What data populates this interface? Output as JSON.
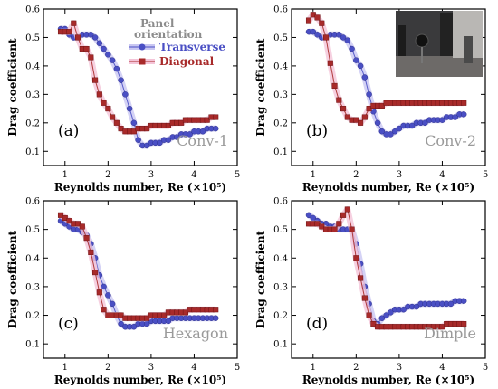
{
  "figure": {
    "legend_title": "Panel orientation",
    "legend_entries": [
      {
        "label": "Transverse",
        "color": "#4a4fc4",
        "marker": "circle"
      },
      {
        "label": "Diagonal",
        "color": "#a82a2a",
        "marker": "square"
      }
    ],
    "photo_inset_panel": "b"
  },
  "chart_data": [
    {
      "type": "line",
      "panel_label": "(a)",
      "name_label": "Conv-1",
      "xlabel": "Reynolds number, Re (×10⁵)",
      "ylabel": "Drag coefficient",
      "xlim": [
        0.5,
        5
      ],
      "ylim": [
        0.05,
        0.6
      ],
      "xticks": [
        "1",
        "2",
        "3",
        "4",
        "5"
      ],
      "yticks": [
        "0.1",
        "0.2",
        "0.3",
        "0.4",
        "0.5",
        "0.6"
      ],
      "series": [
        {
          "name": "Transverse",
          "color": "#4a4fc4",
          "x": [
            0.9,
            1.0,
            1.1,
            1.2,
            1.3,
            1.4,
            1.5,
            1.6,
            1.7,
            1.8,
            1.9,
            2.0,
            2.1,
            2.2,
            2.3,
            2.4,
            2.5,
            2.6,
            2.7,
            2.8,
            2.9,
            3.0,
            3.1,
            3.2,
            3.3,
            3.4,
            3.5,
            3.6,
            3.7,
            3.8,
            3.9,
            4.0,
            4.1,
            4.2,
            4.3,
            4.4,
            4.5
          ],
          "y": [
            0.53,
            0.53,
            0.51,
            0.5,
            0.5,
            0.51,
            0.51,
            0.51,
            0.5,
            0.48,
            0.46,
            0.44,
            0.42,
            0.39,
            0.35,
            0.3,
            0.25,
            0.2,
            0.14,
            0.12,
            0.12,
            0.13,
            0.13,
            0.13,
            0.14,
            0.14,
            0.15,
            0.15,
            0.16,
            0.16,
            0.16,
            0.17,
            0.17,
            0.17,
            0.18,
            0.18,
            0.18
          ]
        },
        {
          "name": "Diagonal",
          "color": "#a82a2a",
          "x": [
            0.9,
            1.0,
            1.1,
            1.2,
            1.3,
            1.4,
            1.5,
            1.6,
            1.7,
            1.8,
            1.9,
            2.0,
            2.1,
            2.2,
            2.3,
            2.4,
            2.5,
            2.6,
            2.7,
            2.8,
            2.9,
            3.0,
            3.1,
            3.2,
            3.3,
            3.4,
            3.5,
            3.6,
            3.7,
            3.8,
            3.9,
            4.0,
            4.1,
            4.2,
            4.3,
            4.4,
            4.5
          ],
          "y": [
            0.52,
            0.52,
            0.52,
            0.55,
            0.5,
            0.46,
            0.46,
            0.43,
            0.35,
            0.3,
            0.27,
            0.25,
            0.22,
            0.2,
            0.18,
            0.17,
            0.17,
            0.17,
            0.18,
            0.18,
            0.18,
            0.19,
            0.19,
            0.19,
            0.19,
            0.19,
            0.2,
            0.2,
            0.2,
            0.21,
            0.21,
            0.21,
            0.21,
            0.21,
            0.21,
            0.22,
            0.22
          ]
        }
      ]
    },
    {
      "type": "line",
      "panel_label": "(b)",
      "name_label": "Conv-2",
      "xlabel": "Reynolds number, Re (×10⁵)",
      "ylabel": "Drag coefficient",
      "xlim": [
        0.5,
        5
      ],
      "ylim": [
        0.05,
        0.6
      ],
      "xticks": [
        "1",
        "2",
        "3",
        "4",
        "5"
      ],
      "yticks": [
        "0.1",
        "0.2",
        "0.3",
        "0.4",
        "0.5",
        "0.6"
      ],
      "series": [
        {
          "name": "Transverse",
          "color": "#4a4fc4",
          "x": [
            0.9,
            1.0,
            1.1,
            1.2,
            1.3,
            1.4,
            1.5,
            1.6,
            1.7,
            1.8,
            1.9,
            2.0,
            2.1,
            2.2,
            2.3,
            2.4,
            2.5,
            2.6,
            2.7,
            2.8,
            2.9,
            3.0,
            3.1,
            3.2,
            3.3,
            3.4,
            3.5,
            3.6,
            3.7,
            3.8,
            3.9,
            4.0,
            4.1,
            4.2,
            4.3,
            4.4,
            4.5
          ],
          "y": [
            0.52,
            0.52,
            0.51,
            0.5,
            0.5,
            0.51,
            0.51,
            0.51,
            0.5,
            0.49,
            0.46,
            0.42,
            0.4,
            0.36,
            0.3,
            0.24,
            0.2,
            0.17,
            0.16,
            0.16,
            0.17,
            0.18,
            0.19,
            0.19,
            0.19,
            0.2,
            0.2,
            0.2,
            0.21,
            0.21,
            0.21,
            0.21,
            0.22,
            0.22,
            0.22,
            0.23,
            0.23
          ]
        },
        {
          "name": "Diagonal",
          "color": "#a82a2a",
          "x": [
            0.9,
            1.0,
            1.1,
            1.2,
            1.3,
            1.4,
            1.5,
            1.6,
            1.7,
            1.8,
            1.9,
            2.0,
            2.1,
            2.2,
            2.3,
            2.4,
            2.5,
            2.6,
            2.7,
            2.8,
            2.9,
            3.0,
            3.1,
            3.2,
            3.3,
            3.4,
            3.5,
            3.6,
            3.7,
            3.8,
            3.9,
            4.0,
            4.1,
            4.2,
            4.3,
            4.4,
            4.5
          ],
          "y": [
            0.56,
            0.58,
            0.57,
            0.55,
            0.5,
            0.41,
            0.33,
            0.28,
            0.25,
            0.22,
            0.21,
            0.21,
            0.2,
            0.22,
            0.25,
            0.26,
            0.26,
            0.26,
            0.27,
            0.27,
            0.27,
            0.27,
            0.27,
            0.27,
            0.27,
            0.27,
            0.27,
            0.27,
            0.27,
            0.27,
            0.27,
            0.27,
            0.27,
            0.27,
            0.27,
            0.27,
            0.27
          ]
        }
      ]
    },
    {
      "type": "line",
      "panel_label": "(c)",
      "name_label": "Hexagon",
      "xlabel": "Reynolds number, Re (×10⁵)",
      "ylabel": "Drag coefficient",
      "xlim": [
        0.5,
        5
      ],
      "ylim": [
        0.05,
        0.6
      ],
      "xticks": [
        "1",
        "2",
        "3",
        "4",
        "5"
      ],
      "yticks": [
        "0.1",
        "0.2",
        "0.3",
        "0.4",
        "0.5",
        "0.6"
      ],
      "series": [
        {
          "name": "Transverse",
          "color": "#4a4fc4",
          "x": [
            0.9,
            1.0,
            1.1,
            1.2,
            1.3,
            1.4,
            1.5,
            1.6,
            1.7,
            1.8,
            1.9,
            2.0,
            2.1,
            2.2,
            2.3,
            2.4,
            2.5,
            2.6,
            2.7,
            2.8,
            2.9,
            3.0,
            3.1,
            3.2,
            3.3,
            3.4,
            3.5,
            3.6,
            3.7,
            3.8,
            3.9,
            4.0,
            4.1,
            4.2,
            4.3,
            4.4,
            4.5
          ],
          "y": [
            0.53,
            0.52,
            0.51,
            0.5,
            0.5,
            0.49,
            0.48,
            0.45,
            0.4,
            0.34,
            0.3,
            0.27,
            0.24,
            0.2,
            0.17,
            0.16,
            0.16,
            0.16,
            0.17,
            0.17,
            0.17,
            0.18,
            0.18,
            0.18,
            0.18,
            0.18,
            0.19,
            0.19,
            0.19,
            0.19,
            0.19,
            0.19,
            0.19,
            0.19,
            0.19,
            0.19,
            0.19
          ]
        },
        {
          "name": "Diagonal",
          "color": "#a82a2a",
          "x": [
            0.9,
            1.0,
            1.1,
            1.2,
            1.3,
            1.4,
            1.5,
            1.6,
            1.7,
            1.8,
            1.9,
            2.0,
            2.1,
            2.2,
            2.3,
            2.4,
            2.5,
            2.6,
            2.7,
            2.8,
            2.9,
            3.0,
            3.1,
            3.2,
            3.3,
            3.4,
            3.5,
            3.6,
            3.7,
            3.8,
            3.9,
            4.0,
            4.1,
            4.2,
            4.3,
            4.4,
            4.5
          ],
          "y": [
            0.55,
            0.54,
            0.53,
            0.52,
            0.52,
            0.51,
            0.47,
            0.42,
            0.35,
            0.28,
            0.22,
            0.2,
            0.2,
            0.2,
            0.2,
            0.19,
            0.19,
            0.19,
            0.19,
            0.19,
            0.19,
            0.2,
            0.2,
            0.2,
            0.2,
            0.21,
            0.21,
            0.21,
            0.21,
            0.21,
            0.22,
            0.22,
            0.22,
            0.22,
            0.22,
            0.22,
            0.22
          ]
        }
      ]
    },
    {
      "type": "line",
      "panel_label": "(d)",
      "name_label": "Dimple",
      "xlabel": "Reynolds number, Re (×10⁵)",
      "ylabel": "Drag coefficient",
      "xlim": [
        0.5,
        5
      ],
      "ylim": [
        0.05,
        0.6
      ],
      "xticks": [
        "1",
        "2",
        "3",
        "4",
        "5"
      ],
      "yticks": [
        "0.1",
        "0.2",
        "0.3",
        "0.4",
        "0.5",
        "0.6"
      ],
      "series": [
        {
          "name": "Transverse",
          "color": "#4a4fc4",
          "x": [
            0.9,
            1.0,
            1.1,
            1.2,
            1.3,
            1.4,
            1.5,
            1.6,
            1.7,
            1.8,
            1.9,
            2.0,
            2.1,
            2.2,
            2.3,
            2.4,
            2.5,
            2.6,
            2.7,
            2.8,
            2.9,
            3.0,
            3.1,
            3.2,
            3.3,
            3.4,
            3.5,
            3.6,
            3.7,
            3.8,
            3.9,
            4.0,
            4.1,
            4.2,
            4.3,
            4.4,
            4.5
          ],
          "y": [
            0.55,
            0.54,
            0.53,
            0.52,
            0.52,
            0.51,
            0.51,
            0.5,
            0.5,
            0.5,
            0.5,
            0.45,
            0.38,
            0.3,
            0.24,
            0.18,
            0.17,
            0.19,
            0.2,
            0.21,
            0.22,
            0.22,
            0.22,
            0.23,
            0.23,
            0.23,
            0.24,
            0.24,
            0.24,
            0.24,
            0.24,
            0.24,
            0.24,
            0.24,
            0.25,
            0.25,
            0.25
          ]
        },
        {
          "name": "Diagonal",
          "color": "#a82a2a",
          "x": [
            0.9,
            1.0,
            1.1,
            1.2,
            1.3,
            1.4,
            1.5,
            1.6,
            1.7,
            1.8,
            1.9,
            2.0,
            2.1,
            2.2,
            2.3,
            2.4,
            2.5,
            2.6,
            2.7,
            2.8,
            2.9,
            3.0,
            3.1,
            3.2,
            3.3,
            3.4,
            3.5,
            3.6,
            3.7,
            3.8,
            3.9,
            4.0,
            4.1,
            4.2,
            4.3,
            4.4,
            4.5
          ],
          "y": [
            0.52,
            0.52,
            0.52,
            0.51,
            0.5,
            0.5,
            0.5,
            0.52,
            0.55,
            0.57,
            0.5,
            0.4,
            0.33,
            0.26,
            0.2,
            0.17,
            0.16,
            0.16,
            0.16,
            0.16,
            0.16,
            0.16,
            0.16,
            0.16,
            0.16,
            0.16,
            0.16,
            0.16,
            0.16,
            0.16,
            0.16,
            0.16,
            0.17,
            0.17,
            0.17,
            0.17,
            0.17
          ]
        }
      ]
    }
  ]
}
